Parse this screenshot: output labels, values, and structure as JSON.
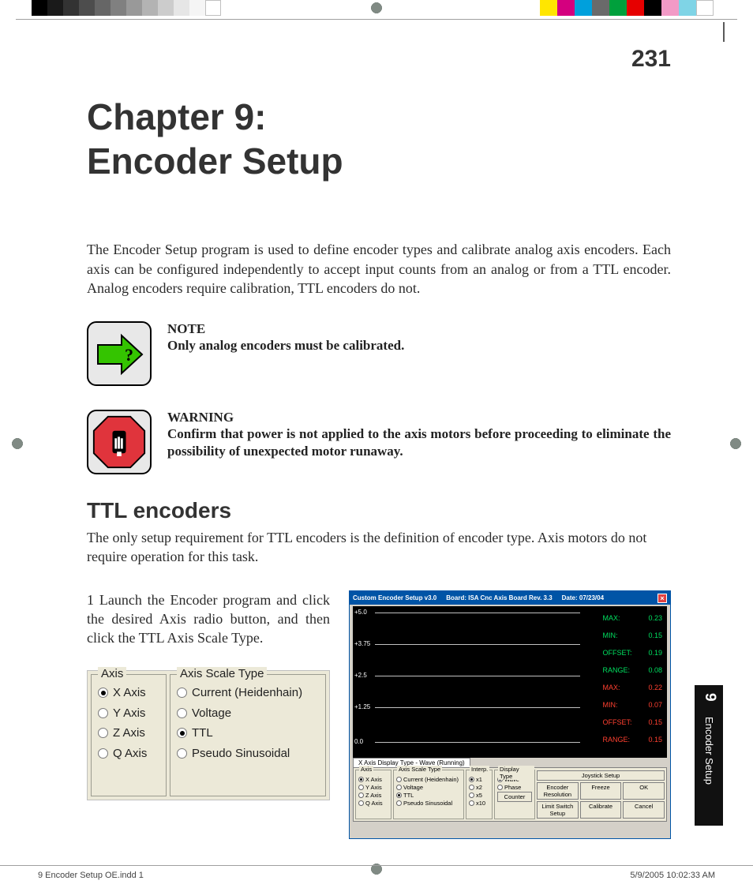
{
  "colorbars": {
    "gray": [
      "#000000",
      "#1a1a1a",
      "#333333",
      "#4d4d4d",
      "#666666",
      "#808080",
      "#999999",
      "#b3b3b3",
      "#cccccc",
      "#e6e6e6",
      "#f5f5f5",
      "#ffffff"
    ],
    "color": [
      "#ffe600",
      "#d4007f",
      "#00a0dc",
      "#6a6a6a",
      "#00a03c",
      "#e60000",
      "#000000",
      "#f29ac6",
      "#7fd4e6",
      "#ffffff"
    ]
  },
  "page_number": "231",
  "chapter_title_l1": "Chapter 9:",
  "chapter_title_l2": "Encoder Setup",
  "intro": "The Encoder Setup program is used to define encoder types and calibrate analog axis encoders. Each axis can be configured independently to accept input counts from an analog or from a TTL encoder.  Analog encoders require calibration, TTL encoders do not.",
  "note": {
    "head": "NOTE",
    "body": "Only analog encoders must be calibrated.",
    "arrow_fill": "#34c400",
    "arrow_stroke": "#000000",
    "qmark": "?"
  },
  "warning": {
    "head": "WARNING",
    "body": "Confirm that power is not applied to the axis motors before proceeding to eliminate the possibility of unexpected motor runaway.",
    "oct_fill": "#e0343c",
    "oct_stroke": "#000000"
  },
  "section_title": "TTL encoders",
  "section_text": "The only setup requirement for TTL encoders is the definition of encoder type.  Axis motors do not require operation for this task.",
  "step1": "1    Launch the Encoder program and click the desired Axis radio button, and then click the TTL Axis Scale Type.",
  "axis_panel": {
    "bg": "#ece9d8",
    "axis_legend": "Axis",
    "scale_legend": "Axis Scale Type",
    "axes": [
      {
        "label": "X Axis",
        "sel": true
      },
      {
        "label": "Y Axis",
        "sel": false
      },
      {
        "label": "Z Axis",
        "sel": false
      },
      {
        "label": "Q Axis",
        "sel": false
      }
    ],
    "scales": [
      {
        "label": "Current (Heidenhain)",
        "sel": false
      },
      {
        "label": "Voltage",
        "sel": false
      },
      {
        "label": "TTL",
        "sel": true
      },
      {
        "label": "Pseudo Sinusoidal",
        "sel": false
      }
    ]
  },
  "encoder_window": {
    "title_app": "Custom Encoder Setup v3.0",
    "title_board": "Board: ISA Cnc Axis Board Rev. 3.3",
    "title_date": "Date: 07/23/04",
    "title_bg": "#0054a6",
    "plot": {
      "bg": "#000000",
      "grid_color": "#c0c0c0",
      "y_ticks": [
        "+5.0",
        "+3.75",
        "+2.5",
        "+1.25",
        "0.0"
      ],
      "y_positions": [
        8,
        48,
        88,
        128,
        172
      ],
      "stats": [
        {
          "label": "MAX:",
          "value": "0.23",
          "color": "green"
        },
        {
          "label": "MIN:",
          "value": "0.15",
          "color": "green"
        },
        {
          "label": "OFFSET:",
          "value": "0.19",
          "color": "green"
        },
        {
          "label": "RANGE:",
          "value": "0.08",
          "color": "green"
        },
        {
          "label": "MAX:",
          "value": "0.22",
          "color": "red"
        },
        {
          "label": "MIN:",
          "value": "0.07",
          "color": "red"
        },
        {
          "label": "OFFSET:",
          "value": "0.15",
          "color": "red"
        },
        {
          "label": "RANGE:",
          "value": "0.15",
          "color": "red"
        }
      ]
    },
    "tab": "X Axis  Display Type - Wave (Running)",
    "controls": {
      "axis": {
        "legend": "Axis",
        "items": [
          {
            "label": "X Axis",
            "sel": true
          },
          {
            "label": "Y Axis",
            "sel": false
          },
          {
            "label": "Z Axis",
            "sel": false
          },
          {
            "label": "Q Axis",
            "sel": false
          }
        ]
      },
      "scale": {
        "legend": "Axis Scale Type",
        "items": [
          {
            "label": "Current (Heidenhain)",
            "sel": false
          },
          {
            "label": "Voltage",
            "sel": false
          },
          {
            "label": "TTL",
            "sel": true
          },
          {
            "label": "Pseudo Sinusoidal",
            "sel": false
          }
        ]
      },
      "interp": {
        "legend": "Interp.",
        "items": [
          {
            "label": "x1",
            "sel": true
          },
          {
            "label": "x2",
            "sel": false
          },
          {
            "label": "x5",
            "sel": false
          },
          {
            "label": "x10",
            "sel": false
          }
        ]
      },
      "display": {
        "legend": "Display Type",
        "items": [
          {
            "label": "Wave",
            "sel": true
          },
          {
            "label": "Phase",
            "sel": false
          }
        ],
        "counter_btn": "Counter"
      },
      "buttons": {
        "joystick": "Joystick Setup",
        "enc_res": "Encoder Resolution",
        "limit": "Limit Switch Setup",
        "freeze": "Freeze",
        "calibrate": "Calibrate",
        "ok": "OK",
        "cancel": "Cancel"
      }
    }
  },
  "sidetab": {
    "num": "9",
    "text": "Encoder Setup"
  },
  "footer": {
    "left": "9 Encoder Setup OE.indd   1",
    "right": "5/9/2005   10:02:33 AM"
  }
}
